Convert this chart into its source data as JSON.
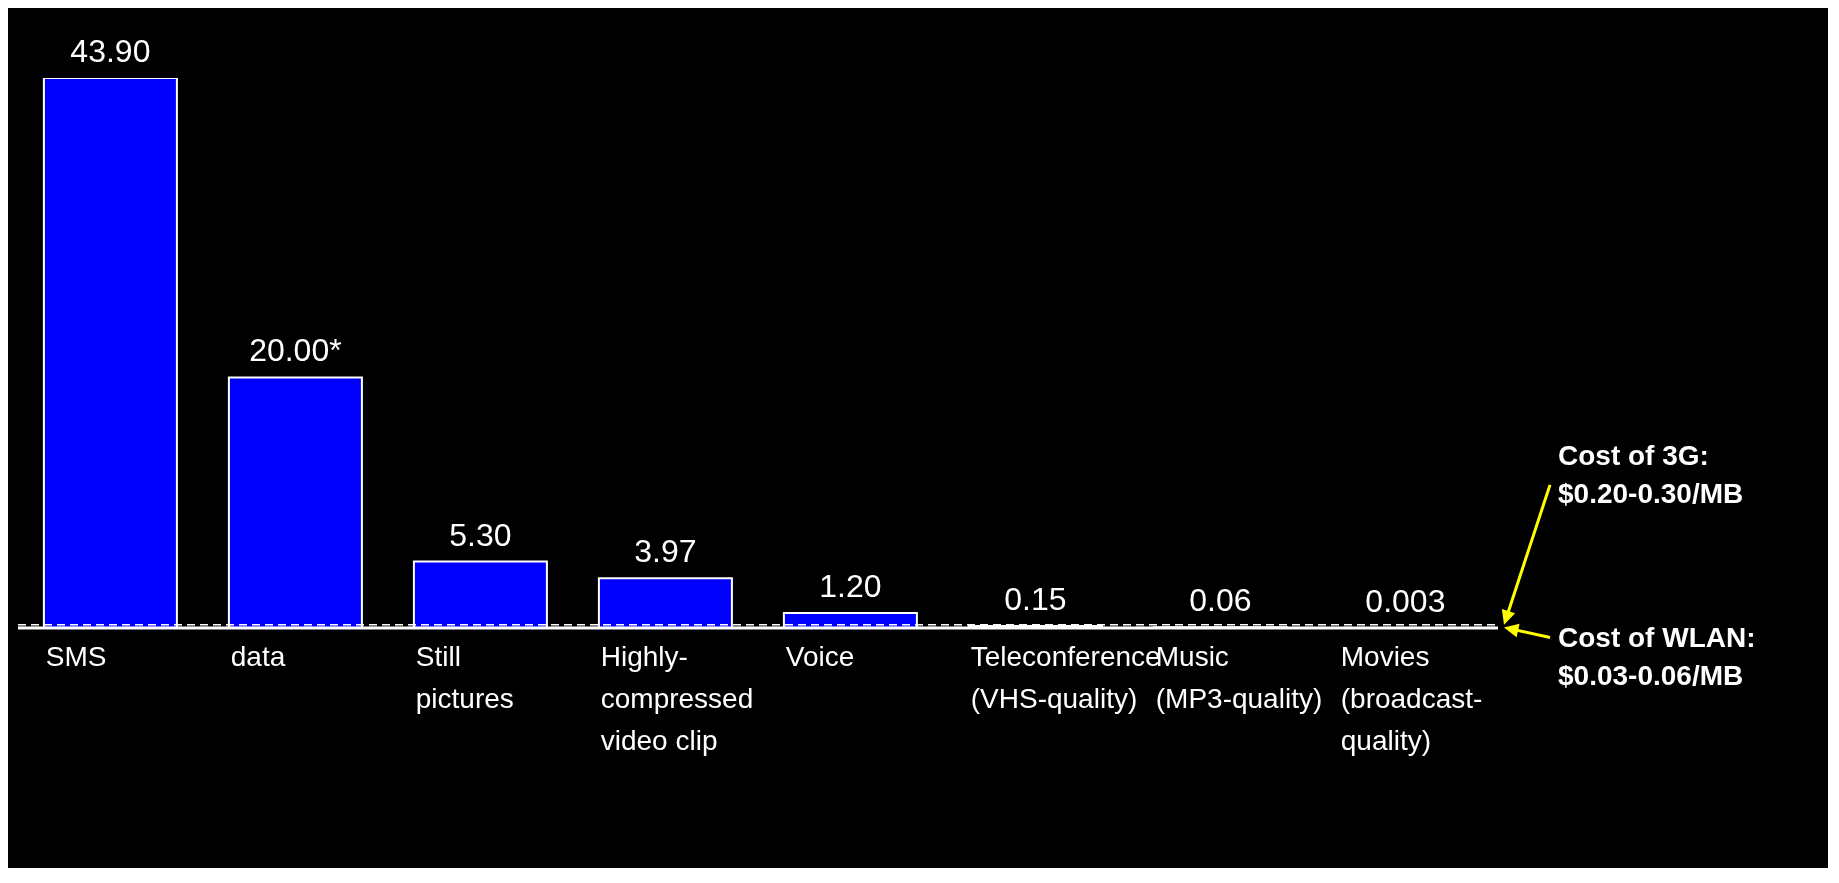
{
  "chart_data": {
    "type": "bar",
    "categories": [
      "SMS",
      "data",
      "Still pictures",
      "Highly-compressed video clip",
      "Voice",
      "Teleconference (VHS-quality)",
      "Music (MP3-quality)",
      "Movies (broadcast-quality)"
    ],
    "values": [
      43.9,
      20.0,
      5.3,
      3.97,
      1.2,
      0.15,
      0.06,
      0.003
    ],
    "value_labels": [
      "43.90",
      "20.00*",
      "5.30",
      "3.97",
      "1.20",
      "0.15",
      "0.06",
      "0.003"
    ],
    "color": "#0000ff",
    "ref_lines": [
      {
        "axis": "y",
        "value": 0.25,
        "color": "#ffffff",
        "line_style": "dashed"
      },
      {
        "axis": "y",
        "value": 0.045,
        "color": "#ffffff",
        "line_style": "dashed"
      }
    ],
    "annotations": [
      "Cost of 3G: $0.20-0.30/MB",
      "Cost of WLAN: $0.03-0.06/MB"
    ]
  }
}
